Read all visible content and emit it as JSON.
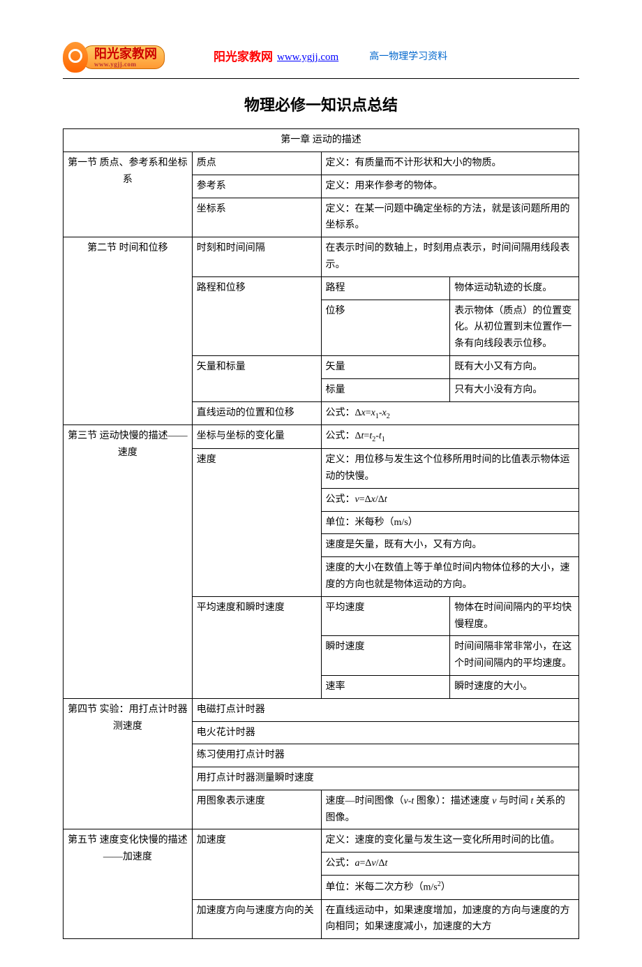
{
  "header": {
    "logo_text": "阳光家教网",
    "logo_url_small": "www.ygjj.com",
    "site_label": "阳光家教网",
    "site_url": "www.ygjj.com",
    "material_label": "高一物理学习资料"
  },
  "title": "物理必修一知识点总结",
  "chapter_header": "第一章 运动的描述",
  "sections": {
    "s1": {
      "name": "第一节 质点、参考系和坐标系",
      "rows": {
        "r1": {
          "concept": "质点",
          "def": "定义：有质量而不计形状和大小的物质。"
        },
        "r2": {
          "concept": "参考系",
          "def": "定义：用来作参考的物体。"
        },
        "r3": {
          "concept": "坐标系",
          "def": "定义：在某一问题中确定坐标的方法，就是该问题所用的坐标系。"
        }
      }
    },
    "s2": {
      "name": "第二节 时间和位移",
      "rows": {
        "r1": {
          "concept": "时刻和时间间隔",
          "def": "在表示时间的数轴上，时刻用点表示，时间间隔用线段表示。"
        },
        "r2": {
          "concept": "路程和位移",
          "sub1_label": "路程",
          "sub1_def": "物体运动轨迹的长度。",
          "sub2_label": "位移",
          "sub2_def": "表示物体（质点）的位置变化。从初位置到末位置作一条有向线段表示位移。"
        },
        "r3": {
          "concept": "矢量和标量",
          "sub1_label": "矢量",
          "sub1_def": "既有大小又有方向。",
          "sub2_label": "标量",
          "sub2_def": "只有大小没有方向。"
        },
        "r4": {
          "concept": "直线运动的位置和位移",
          "def_prefix": "公式："
        }
      }
    },
    "s3": {
      "name": "第三节 运动快慢的描述——速度",
      "rows": {
        "r1": {
          "concept": "坐标与坐标的变化量",
          "def_prefix": "公式："
        },
        "r2": {
          "concept": "速度",
          "def1": "定义：用位移与发生这个位移所用时间的比值表示物体运动的快慢。",
          "def2_prefix": "公式：",
          "def3": "单位：米每秒（m/s）",
          "def4": "速度是矢量，既有大小，又有方向。",
          "def5": "速度的大小在数值上等于单位时间内物体位移的大小，速度的方向也就是物体运动的方向。"
        },
        "r3": {
          "concept": "平均速度和瞬时速度",
          "sub1_label": "平均速度",
          "sub1_def": "物体在时间间隔内的平均快慢程度。",
          "sub2_label": "瞬时速度",
          "sub2_def": "时间间隔非常非常小，在这个时间间隔内的平均速度。",
          "sub3_label": "速率",
          "sub3_def": "瞬时速度的大小。"
        }
      }
    },
    "s4": {
      "name": "第四节 实验：用打点计时器测速度",
      "rows": {
        "r1": {
          "concept": "电磁打点计时器"
        },
        "r2": {
          "concept": "电火花计时器"
        },
        "r3": {
          "concept": "练习使用打点计时器"
        },
        "r4": {
          "concept": "用打点计时器测量瞬时速度"
        },
        "r5": {
          "concept": "用图象表示速度",
          "def_prefix": "速度—时间图像（",
          "def_mid": " 图象）：描述速度 ",
          "def_mid2": " 与时间 ",
          "def_suffix": "关系的图像。"
        }
      }
    },
    "s5": {
      "name": "第五节 速度变化快慢的描述——加速度",
      "rows": {
        "r1": {
          "concept": "加速度",
          "def1": "定义：速度的变化量与发生这一变化所用时间的比值。",
          "def2_prefix": "公式：",
          "def3_prefix": "单位：米每二次方秒（m/s",
          "def3_suffix": "）"
        },
        "r2": {
          "concept": "加速度方向与速度方向的关",
          "def": "在直线运动中，如果速度增加，加速度的方向与速度的方向相同；如果速度减小，加速度的大方"
        }
      }
    }
  },
  "colors": {
    "text": "#000000",
    "link": "#0000ff",
    "red": "#ff0000",
    "blue_label": "#0066cc",
    "border": "#000000"
  }
}
